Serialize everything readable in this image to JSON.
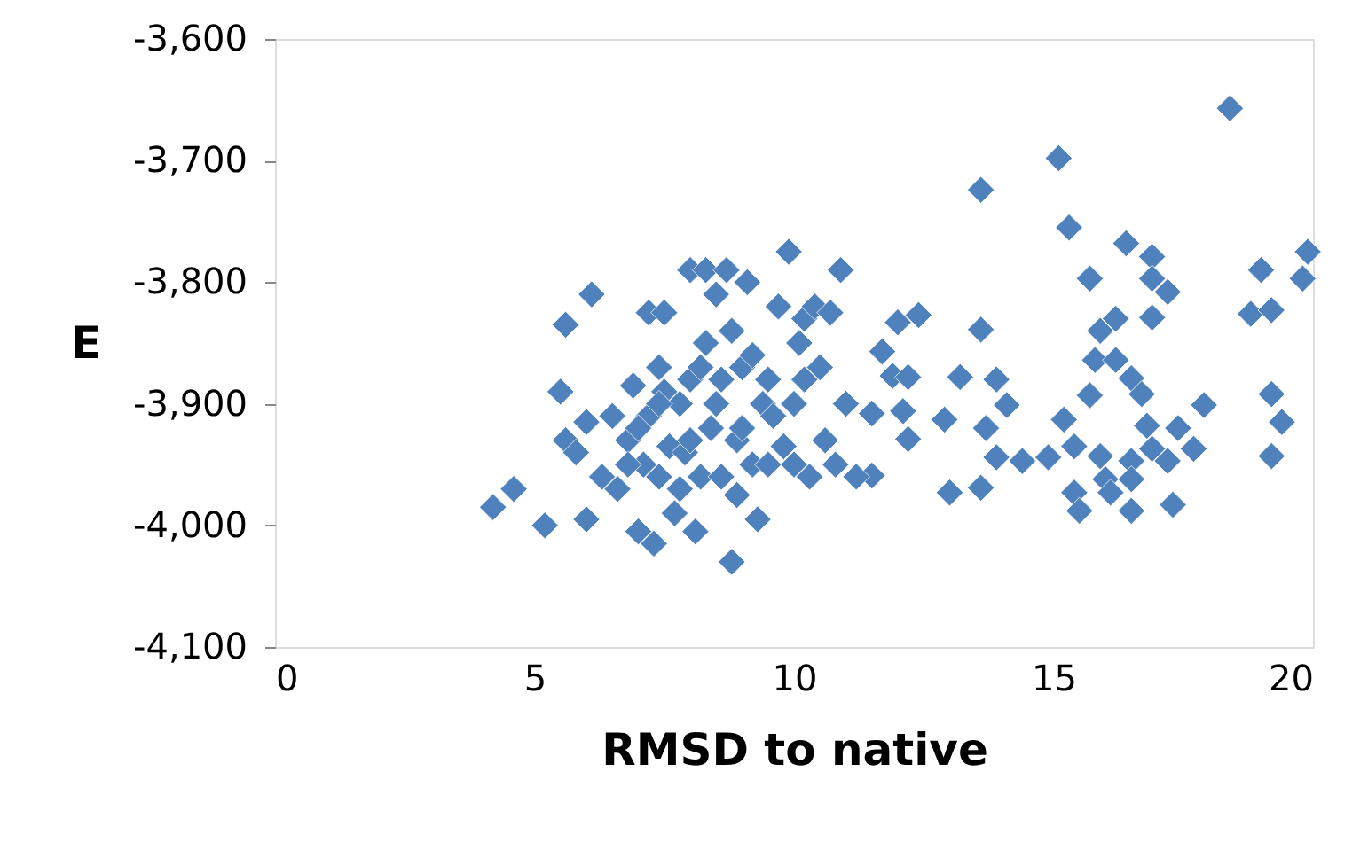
{
  "chart_data": {
    "type": "scatter",
    "xlabel": "RMSD to native",
    "ylabel": "E",
    "xlim": [
      0,
      20
    ],
    "xticks": [
      0,
      5,
      10,
      15,
      20
    ],
    "ylim": [
      -4100,
      -3600
    ],
    "yticks": [
      {
        "value": -4100,
        "label": "-4,100"
      },
      {
        "value": -4000,
        "label": "-4,000"
      },
      {
        "value": -3900,
        "label": "-3,900"
      },
      {
        "value": -3800,
        "label": "-3,800"
      },
      {
        "value": -3700,
        "label": "-3,700"
      },
      {
        "value": -3600,
        "label": "-3,600"
      }
    ],
    "grid": false,
    "marker": "diamond",
    "series": [
      {
        "color": "#4f81bd",
        "x": [
          18.4,
          15.1,
          13.6,
          15.3,
          16.4,
          16.9,
          15.7,
          16.9,
          17.2,
          19.0,
          19.9,
          19.8,
          18.8,
          19.2,
          16.9,
          16.2,
          15.9,
          13.6,
          12.4,
          12.0,
          11.7,
          15.8,
          16.2,
          16.5,
          16.7,
          15.7,
          11.9,
          12.2,
          13.2,
          13.9,
          14.1,
          11.5,
          12.1,
          12.2,
          12.9,
          13.7,
          19.2,
          19.4,
          19.2,
          17.9,
          15.2,
          15.4,
          16.8,
          17.4,
          17.7,
          16.9,
          13.9,
          14.4,
          14.9,
          15.9,
          16.5,
          17.2,
          16.0,
          16.5,
          11.5,
          13.0,
          13.6,
          15.4,
          15.5,
          16.1,
          16.5,
          17.3,
          4.2,
          4.6,
          5.2,
          5.6,
          5.5,
          5.6,
          5.8,
          6.0,
          6.1,
          6.0,
          6.3,
          6.5,
          6.6,
          6.8,
          6.9,
          7.0,
          7.1,
          7.2,
          7.2,
          7.3,
          7.4,
          7.4,
          7.5,
          7.6,
          7.7,
          7.8,
          7.9,
          8.0,
          8.0,
          8.1,
          8.2,
          8.3,
          8.3,
          8.4,
          8.5,
          8.6,
          8.6,
          8.7,
          8.8,
          8.8,
          8.9,
          9.0,
          9.1,
          9.2,
          9.3,
          9.4,
          9.5,
          9.7,
          9.8,
          9.9,
          10.0,
          10.1,
          10.2,
          10.3,
          10.4,
          10.5,
          10.6,
          10.7,
          10.8,
          10.9,
          11.0,
          11.2,
          7.0,
          7.5,
          8.0,
          8.5,
          9.0,
          9.6,
          10.0,
          8.2,
          7.8,
          9.5,
          10.2,
          6.8,
          8.9,
          9.2,
          7.4
        ],
        "values": [
          -3657,
          -3698,
          -3724,
          -3755,
          -3768,
          -3779,
          -3797,
          -3797,
          -3808,
          -3790,
          -3775,
          -3797,
          -3826,
          -3823,
          -3829,
          -3830,
          -3840,
          -3839,
          -3827,
          -3833,
          -3857,
          -3864,
          -3864,
          -3879,
          -3892,
          -3893,
          -3877,
          -3878,
          -3878,
          -3880,
          -3901,
          -3908,
          -3906,
          -3929,
          -3913,
          -3920,
          -3892,
          -3915,
          -3943,
          -3901,
          -3913,
          -3935,
          -3918,
          -3920,
          -3937,
          -3937,
          -3944,
          -3947,
          -3944,
          -3943,
          -3947,
          -3947,
          -3962,
          -3962,
          -3959,
          -3973,
          -3969,
          -3973,
          -3988,
          -3973,
          -3988,
          -3983,
          -3985,
          -3970,
          -4000,
          -3835,
          -3890,
          -3930,
          -3940,
          -3995,
          -3810,
          -3915,
          -3960,
          -3910,
          -3970,
          -3930,
          -3885,
          -4005,
          -3950,
          -3910,
          -3825,
          -4015,
          -3870,
          -3960,
          -3825,
          -3935,
          -3990,
          -3900,
          -3940,
          -3880,
          -3790,
          -4005,
          -3960,
          -3790,
          -3850,
          -3920,
          -3810,
          -3880,
          -3960,
          -3790,
          -4030,
          -3840,
          -3930,
          -3870,
          -3800,
          -3950,
          -3995,
          -3900,
          -3880,
          -3820,
          -3935,
          -3775,
          -3900,
          -3850,
          -3830,
          -3960,
          -3820,
          -3870,
          -3930,
          -3825,
          -3950,
          -3790,
          -3900,
          -3960,
          -3920,
          -3890,
          -3930,
          -3900,
          -3920,
          -3910,
          -3950,
          -3870,
          -3970,
          -3950,
          -3880,
          -3950,
          -3975,
          -3860,
          -3900
        ]
      }
    ]
  }
}
